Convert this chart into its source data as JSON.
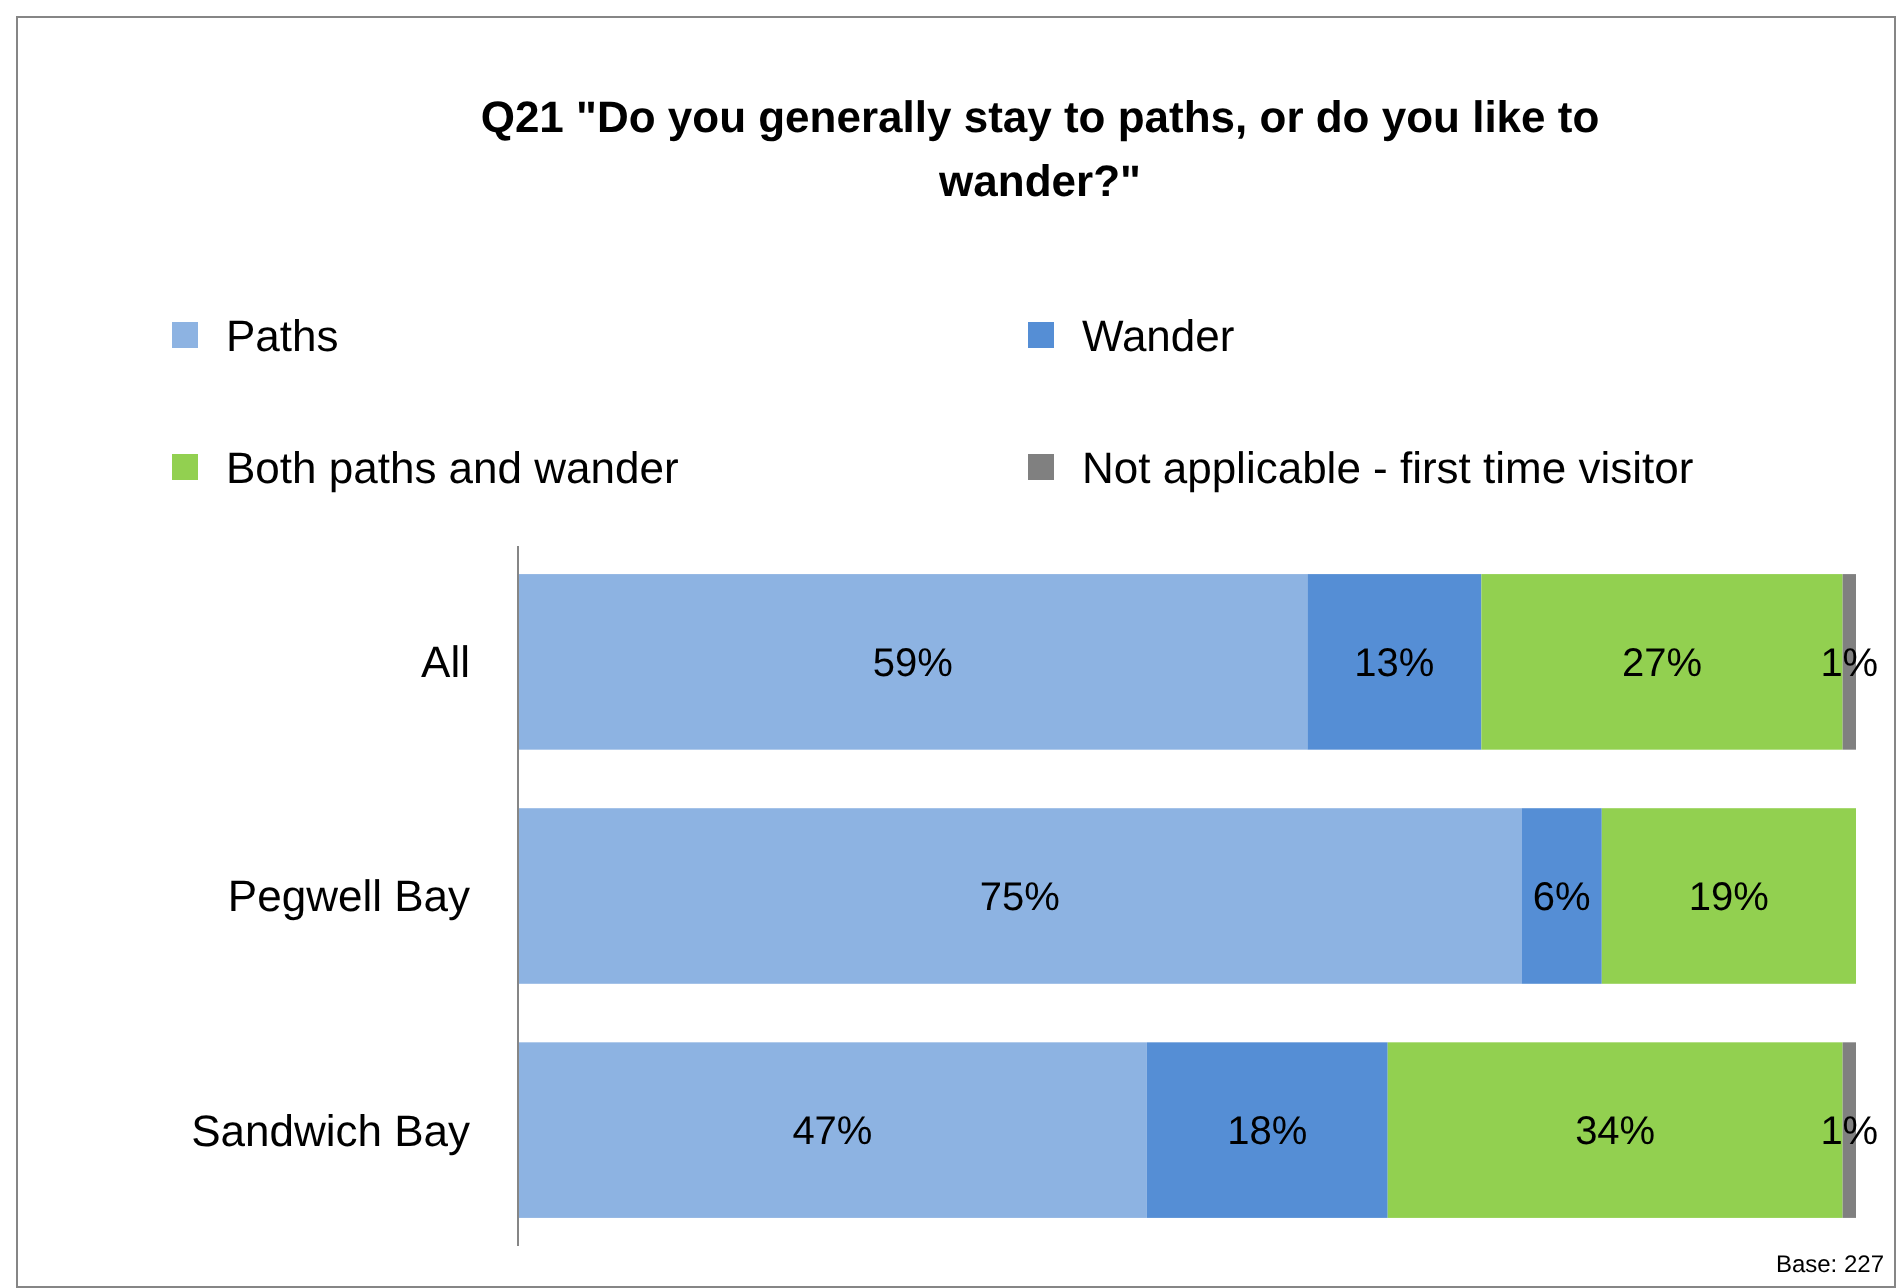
{
  "chart_data": {
    "type": "bar",
    "orientation": "horizontal",
    "stacked": true,
    "title": "Q21 \"Do you generally stay to paths, or do you like to wander?\"",
    "categories": [
      "All",
      "Pegwell Bay",
      "Sandwich Bay"
    ],
    "series": [
      {
        "name": "Paths",
        "color": "#8db3e2",
        "values": [
          59,
          75,
          47
        ],
        "value_labels": [
          "59%",
          "75%",
          "47%"
        ]
      },
      {
        "name": "Wander",
        "color": "#558ed5",
        "values": [
          13,
          6,
          18
        ],
        "value_labels": [
          "13%",
          "6%",
          "18%"
        ]
      },
      {
        "name": "Both paths and wander",
        "color": "#92d050",
        "values": [
          27,
          19,
          34
        ],
        "value_labels": [
          "27%",
          "19%",
          "34%"
        ]
      },
      {
        "name": "Not applicable - first time visitor",
        "color": "#808080",
        "values": [
          1,
          null,
          1
        ],
        "value_labels": [
          "1%",
          null,
          "1%"
        ]
      }
    ],
    "legend": "top",
    "tick_labels": "y",
    "annotations": [
      "Base: 227"
    ]
  }
}
